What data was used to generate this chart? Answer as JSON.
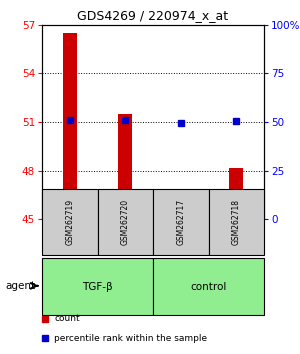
{
  "title": "GDS4269 / 220974_x_at",
  "samples": [
    "GSM262719",
    "GSM262720",
    "GSM262717",
    "GSM262718"
  ],
  "bar_values": [
    56.5,
    51.5,
    45.3,
    48.2
  ],
  "percentile_values": [
    51,
    51,
    49.5,
    50.5
  ],
  "bar_color": "#cc0000",
  "percentile_color": "#0000cc",
  "ylim_left": [
    45,
    57
  ],
  "ylim_right": [
    0,
    100
  ],
  "yticks_left": [
    45,
    48,
    51,
    54,
    57
  ],
  "yticks_right": [
    0,
    25,
    50,
    75,
    100
  ],
  "ytick_labels_right": [
    "0",
    "25",
    "50",
    "75",
    "100%"
  ],
  "group_defs": [
    {
      "label": "TGF-β",
      "start": 0,
      "end": 2,
      "color": "#90EE90"
    },
    {
      "label": "control",
      "start": 2,
      "end": 4,
      "color": "#90EE90"
    }
  ],
  "sample_bg": "#cccccc",
  "bar_width": 0.25,
  "grid_values": [
    48,
    51,
    54
  ],
  "legend_items": [
    {
      "label": "count",
      "color": "#cc0000"
    },
    {
      "label": "percentile rank within the sample",
      "color": "#0000cc"
    }
  ]
}
